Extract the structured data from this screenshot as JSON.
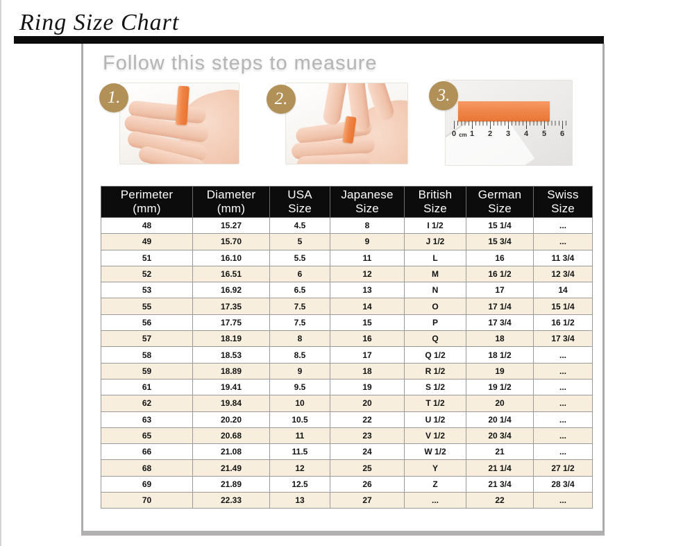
{
  "page": {
    "title": "Ring Size Chart"
  },
  "steps_section": {
    "heading": "Follow this steps to measure",
    "steps": [
      {
        "number": "1.",
        "description": "strip wrapped around finger"
      },
      {
        "number": "2.",
        "description": "mark where strip overlaps"
      },
      {
        "number": "3.",
        "description": "measure strip length with ruler"
      }
    ],
    "ruler": {
      "labels": [
        "0",
        "cm",
        "1",
        "2",
        "3",
        "4",
        "5",
        "6"
      ]
    }
  },
  "table": {
    "columns": [
      {
        "line1": "Perimeter",
        "line2": "(mm)"
      },
      {
        "line1": "Diameter",
        "line2": "(mm)"
      },
      {
        "line1": "USA",
        "line2": "Size"
      },
      {
        "line1": "Japanese",
        "line2": "Size"
      },
      {
        "line1": "British",
        "line2": "Size"
      },
      {
        "line1": "German",
        "line2": "Size"
      },
      {
        "line1": "Swiss",
        "line2": "Size"
      }
    ],
    "rows": [
      [
        "48",
        "15.27",
        "4.5",
        "8",
        "I 1/2",
        "15 1/4",
        "..."
      ],
      [
        "49",
        "15.70",
        "5",
        "9",
        "J 1/2",
        "15 3/4",
        "..."
      ],
      [
        "51",
        "16.10",
        "5.5",
        "11",
        "L",
        "16",
        "11 3/4"
      ],
      [
        "52",
        "16.51",
        "6",
        "12",
        "M",
        "16 1/2",
        "12 3/4"
      ],
      [
        "53",
        "16.92",
        "6.5",
        "13",
        "N",
        "17",
        "14"
      ],
      [
        "55",
        "17.35",
        "7.5",
        "14",
        "O",
        "17 1/4",
        "15 1/4"
      ],
      [
        "56",
        "17.75",
        "7.5",
        "15",
        "P",
        "17 3/4",
        "16 1/2"
      ],
      [
        "57",
        "18.19",
        "8",
        "16",
        "Q",
        "18",
        "17 3/4"
      ],
      [
        "58",
        "18.53",
        "8.5",
        "17",
        "Q 1/2",
        "18 1/2",
        "..."
      ],
      [
        "59",
        "18.89",
        "9",
        "18",
        "R 1/2",
        "19",
        "..."
      ],
      [
        "61",
        "19.41",
        "9.5",
        "19",
        "S 1/2",
        "19 1/2",
        "..."
      ],
      [
        "62",
        "19.84",
        "10",
        "20",
        "T 1/2",
        "20",
        "..."
      ],
      [
        "63",
        "20.20",
        "10.5",
        "22",
        "U 1/2",
        "20 1/4",
        "..."
      ],
      [
        "65",
        "20.68",
        "11",
        "23",
        "V 1/2",
        "20 3/4",
        "..."
      ],
      [
        "66",
        "21.08",
        "11.5",
        "24",
        "W 1/2",
        "21",
        "..."
      ],
      [
        "68",
        "21.49",
        "12",
        "25",
        "Y",
        "21 1/4",
        "27 1/2"
      ],
      [
        "69",
        "21.89",
        "12.5",
        "26",
        "Z",
        "21 3/4",
        "28 3/4"
      ],
      [
        "70",
        "22.33",
        "13",
        "27",
        "...",
        "22",
        "..."
      ]
    ]
  },
  "colors": {
    "badge_gold": "#b19157",
    "row_cream": "#f7eedd",
    "header_black": "#0c0c0c",
    "heading_gray": "#b5b5b5",
    "strip_orange": "#ef8347",
    "frame_gray": "#ababab"
  }
}
